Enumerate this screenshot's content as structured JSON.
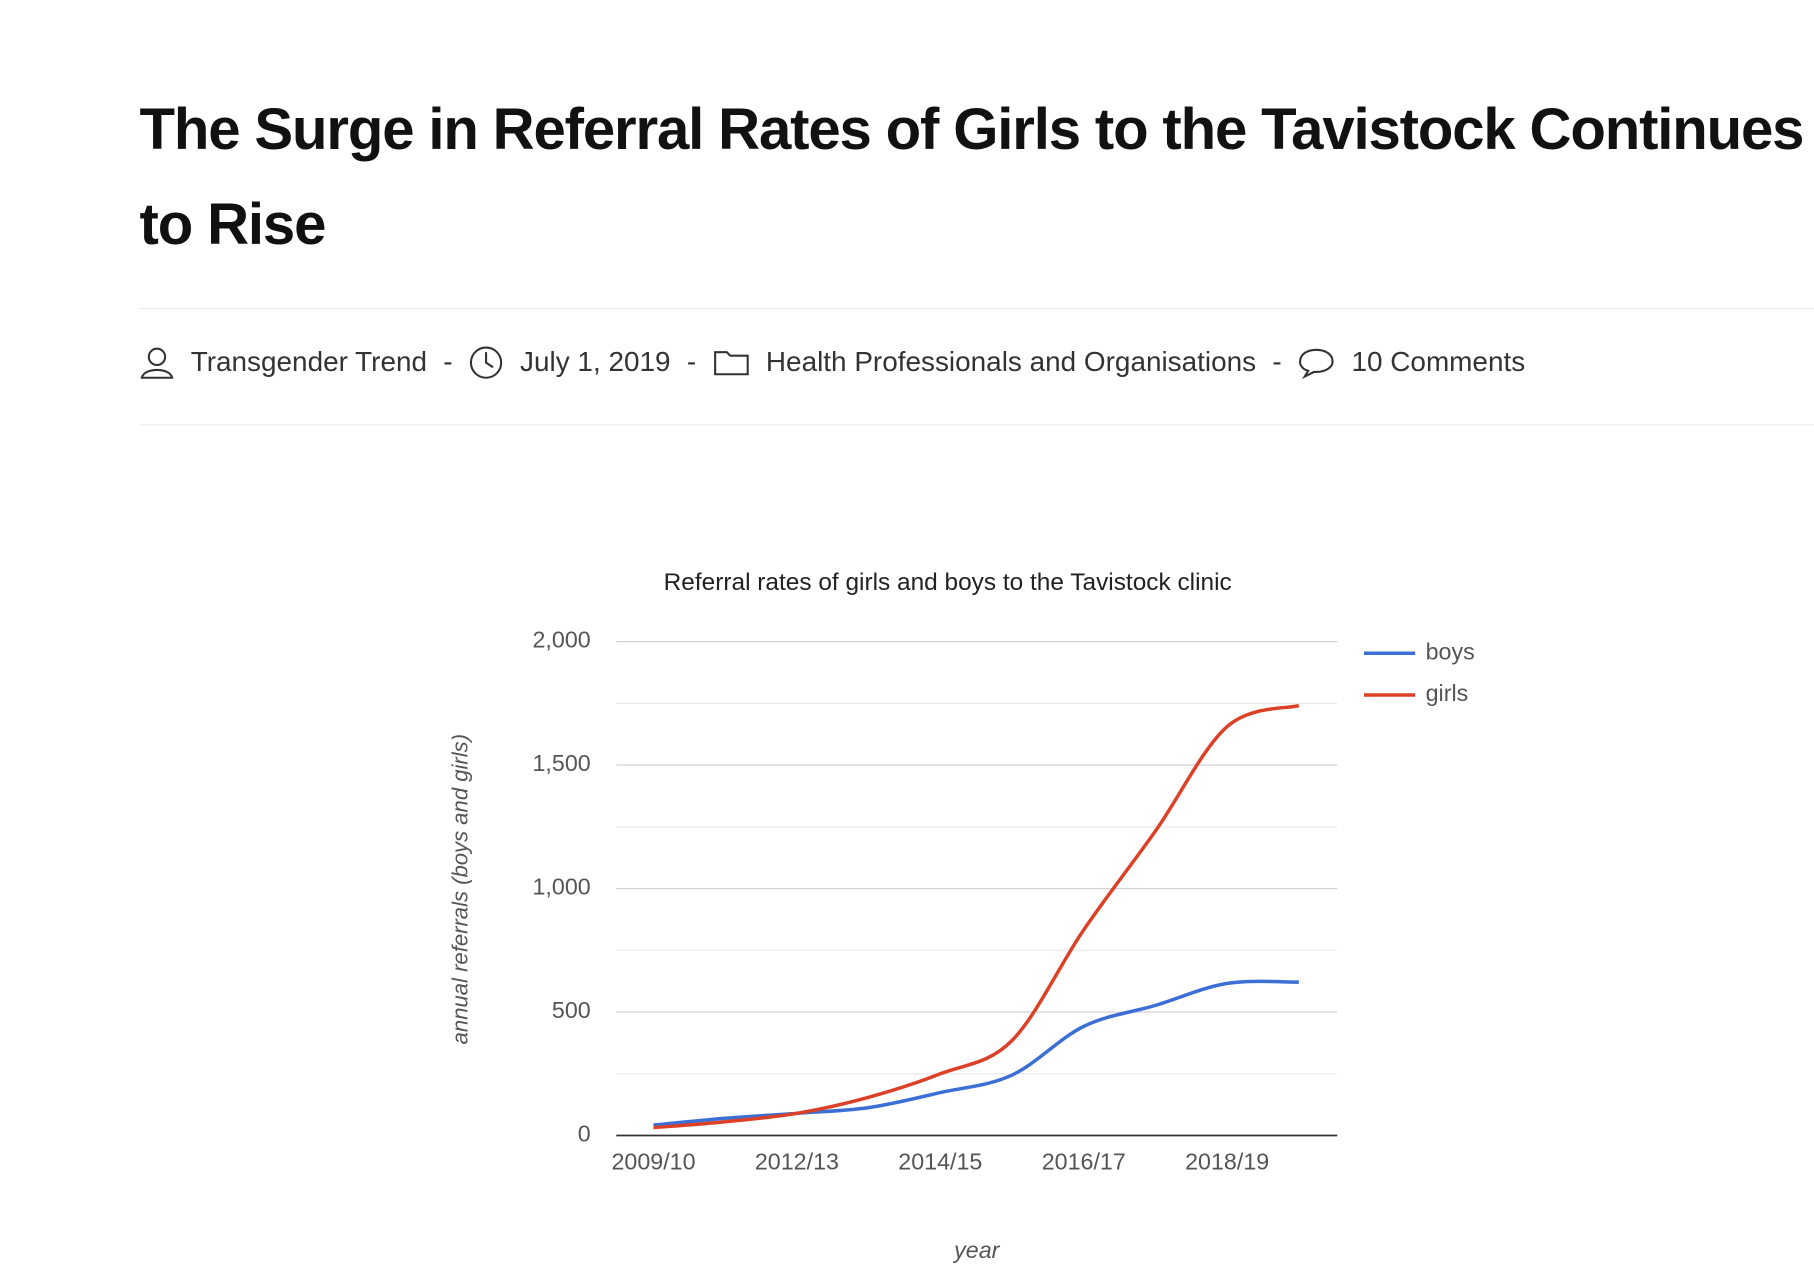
{
  "header": {
    "title": "The Surge in Referral Rates of Girls to the Tavistock Continues to Rise"
  },
  "meta": {
    "author": "Transgender Trend",
    "date": "July 1, 2019",
    "category": "Health Professionals and Organisations",
    "comments": "10 Comments",
    "separator": "-"
  },
  "chart_data": {
    "type": "line",
    "title": "Referral rates of girls and boys to the Tavistock clinic",
    "x_label": "year",
    "y_label": "annual referrals (boys and girls)",
    "categories": [
      "2009/10",
      null,
      "2012/13",
      null,
      "2014/15",
      null,
      "2016/17",
      null,
      "2018/19",
      null
    ],
    "series": [
      {
        "name": "boys",
        "color": "#3c6fd6",
        "values": [
          42,
          70,
          90,
          113,
          174,
          245,
          442,
          527,
          616,
          621
        ]
      },
      {
        "name": "girls",
        "color": "#dc4127",
        "values": [
          32,
          56,
          90,
          155,
          250,
          385,
          833,
          1233,
          1656,
          1741
        ]
      }
    ],
    "ylim": [
      0,
      2000
    ],
    "yticks": [
      0,
      500,
      {
        "value": 1000,
        "label": "1,000"
      },
      {
        "value": 1500,
        "label": "1,500"
      },
      {
        "value": 2000,
        "label": "2,000"
      }
    ],
    "minor_yticks": [
      250,
      750,
      1250,
      1750
    ],
    "grid": true,
    "smooth": true,
    "legend": "right"
  }
}
